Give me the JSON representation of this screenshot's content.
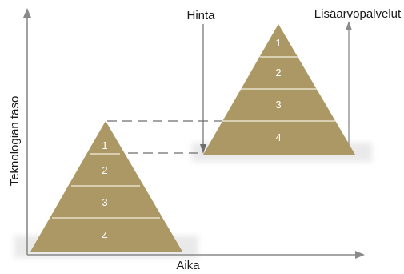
{
  "labels": {
    "y_axis": "Teknologian taso",
    "x_axis": "Aika",
    "price": "Hinta",
    "value_added": "Lisäarvopalvelut"
  },
  "pyramid_left": {
    "tiers": [
      "1",
      "2",
      "3",
      "4"
    ]
  },
  "pyramid_right": {
    "tiers": [
      "1",
      "2",
      "3",
      "4"
    ]
  },
  "colors": {
    "pyramid_fill": "#ab9865",
    "tier_line": "#f4eedd",
    "shadow": "#e9e9e9",
    "axis": "#8a8a8a",
    "dashed": "#6e6e6e",
    "text": "#1a1a1a"
  }
}
